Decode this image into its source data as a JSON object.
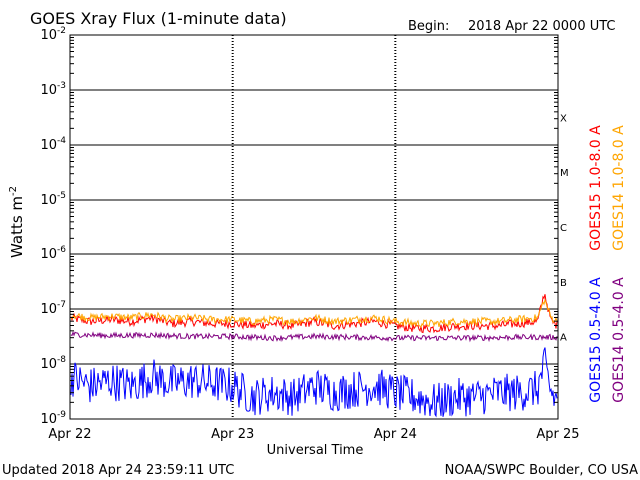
{
  "chart_data": {
    "type": "line",
    "title": "GOES Xray Flux (1-minute data)",
    "begin_label": "Begin:",
    "begin_value": "2018 Apr 22 0000 UTC",
    "ylabel_base": "Watts m",
    "ylabel_exp": "-2",
    "xlabel": "Universal Time",
    "y_scale": "log",
    "ylim": [
      1e-09,
      0.01
    ],
    "y_ticks": [
      {
        "base": "10",
        "exp": "-2"
      },
      {
        "base": "10",
        "exp": "-3"
      },
      {
        "base": "10",
        "exp": "-4"
      },
      {
        "base": "10",
        "exp": "-5"
      },
      {
        "base": "10",
        "exp": "-6"
      },
      {
        "base": "10",
        "exp": "-7"
      },
      {
        "base": "10",
        "exp": "-8"
      },
      {
        "base": "10",
        "exp": "-9"
      }
    ],
    "x_ticks": [
      "Apr 22",
      "Apr 23",
      "Apr 24",
      "Apr 25"
    ],
    "xlim_hours": [
      0,
      72
    ],
    "flare_classes": [
      "X",
      "M",
      "C",
      "B",
      "A"
    ],
    "grid": true,
    "legend_position": "right",
    "series": [
      {
        "name": "GOES15 1.0-8.0 A",
        "color": "#ff0000",
        "x_hours": [
          0,
          3,
          6,
          9,
          12,
          15,
          18,
          21,
          24,
          27,
          30,
          33,
          36,
          39,
          42,
          45,
          48,
          51,
          54,
          57,
          60,
          63,
          66,
          69,
          70,
          71,
          72
        ],
        "values": [
          7e-08,
          6e-08,
          6.5e-08,
          6e-08,
          7e-08,
          5.5e-08,
          6e-08,
          5.5e-08,
          5.5e-08,
          5e-08,
          5.5e-08,
          5e-08,
          6e-08,
          5e-08,
          5.5e-08,
          6e-08,
          5e-08,
          4.5e-08,
          4.5e-08,
          5e-08,
          5e-08,
          5e-08,
          5.5e-08,
          6e-08,
          2e-07,
          6e-08,
          5e-08
        ]
      },
      {
        "name": "GOES14 1.0-8.0 A",
        "color": "#ffa500",
        "x_hours": [
          0,
          3,
          6,
          9,
          12,
          15,
          18,
          21,
          24,
          27,
          30,
          33,
          36,
          39,
          42,
          45,
          48,
          51,
          54,
          57,
          60,
          63,
          66,
          69,
          70,
          71,
          72
        ],
        "values": [
          8e-08,
          7e-08,
          7.5e-08,
          7e-08,
          8e-08,
          6.5e-08,
          7e-08,
          6.5e-08,
          6.5e-08,
          6e-08,
          6.5e-08,
          6e-08,
          7e-08,
          6e-08,
          6.5e-08,
          7e-08,
          6e-08,
          5.5e-08,
          5.5e-08,
          6e-08,
          6e-08,
          6e-08,
          6.5e-08,
          7e-08,
          1.5e-07,
          7e-08,
          6e-08
        ]
      },
      {
        "name": "GOES15 0.5-4.0 A",
        "color": "#0000ff",
        "x_hours": [
          0,
          3,
          6,
          9,
          12,
          15,
          18,
          21,
          24,
          27,
          30,
          33,
          36,
          39,
          42,
          45,
          48,
          51,
          54,
          57,
          60,
          63,
          66,
          69,
          70,
          71,
          72
        ],
        "values": [
          6e-09,
          4e-09,
          5e-09,
          4e-09,
          6e-09,
          4.5e-09,
          5e-09,
          4.5e-09,
          4e-09,
          2.5e-09,
          3e-09,
          2.5e-09,
          4e-09,
          3e-09,
          3.5e-09,
          4e-09,
          3e-09,
          2.5e-09,
          2e-09,
          2.5e-09,
          2.5e-09,
          3e-09,
          3e-09,
          3.5e-09,
          1e-08,
          3e-09,
          2e-09
        ]
      },
      {
        "name": "GOES14 0.5-4.0 A",
        "color": "#800080",
        "x_hours": [
          0,
          6,
          12,
          18,
          24,
          30,
          36,
          42,
          48,
          54,
          60,
          66,
          72
        ],
        "values": [
          3.5e-08,
          3.3e-08,
          3.4e-08,
          3.2e-08,
          3.2e-08,
          3e-08,
          3.2e-08,
          3.1e-08,
          3e-08,
          3e-08,
          3e-08,
          3.1e-08,
          3.1e-08
        ]
      }
    ]
  },
  "footer": {
    "updated": "Updated 2018 Apr 24 23:59:11 UTC",
    "source": "NOAA/SWPC Boulder, CO USA"
  }
}
